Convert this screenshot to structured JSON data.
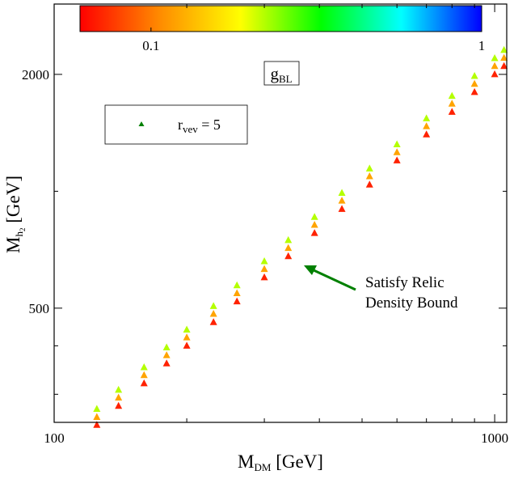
{
  "chart_data": {
    "type": "scatter",
    "xlabel": [
      "M",
      "DM",
      " [GeV]"
    ],
    "ylabel": [
      "M",
      "h",
      "2",
      " [GeV]"
    ],
    "xscale": "log",
    "yscale": "log",
    "xlim": [
      100,
      1065
    ],
    "ylim": [
      254,
      3035
    ],
    "xticks": [
      100,
      1000
    ],
    "xminorticks": [
      200,
      300,
      400,
      500,
      600,
      700,
      800,
      900
    ],
    "yticks": [
      500,
      2000
    ],
    "yminorticks": [
      300,
      400,
      1000
    ],
    "colorbar": {
      "title": [
        "g",
        "BL"
      ],
      "clim": [
        0.061,
        1
      ],
      "ticks": [
        0.1,
        1
      ],
      "colormap": [
        "#ff0000",
        "#ff8c00",
        "#ffff00",
        "#00ff00",
        "#00ffff",
        "#0000ff"
      ]
    },
    "series": [
      {
        "name": [
          "r",
          "vev",
          " = 5"
        ],
        "color": "#008000",
        "marker": "triangle",
        "x": [
          125,
          125,
          125,
          140,
          140,
          140,
          160,
          160,
          160,
          180,
          180,
          180,
          200,
          200,
          200,
          230,
          230,
          230,
          260,
          260,
          260,
          300,
          300,
          300,
          340,
          340,
          340,
          390,
          390,
          390,
          450,
          450,
          450,
          520,
          520,
          520,
          600,
          600,
          600,
          700,
          700,
          700,
          800,
          800,
          800,
          900,
          900,
          900,
          1000,
          1000,
          1000,
          1050,
          1050,
          1050
        ],
        "y": [
          250,
          262,
          275,
          280,
          294,
          308,
          320,
          336,
          352,
          360,
          378,
          396,
          400,
          420,
          440,
          460,
          483,
          506,
          520,
          546,
          572,
          600,
          630,
          660,
          680,
          714,
          748,
          780,
          819,
          858,
          900,
          945,
          990,
          1040,
          1092,
          1144,
          1200,
          1260,
          1320,
          1400,
          1470,
          1540,
          1600,
          1680,
          1760,
          1800,
          1890,
          1980,
          2000,
          2100,
          2200,
          2100,
          2205,
          2310
        ],
        "c": [
          0.07,
          0.12,
          0.22,
          0.07,
          0.12,
          0.22,
          0.07,
          0.12,
          0.22,
          0.07,
          0.12,
          0.22,
          0.07,
          0.12,
          0.22,
          0.07,
          0.12,
          0.22,
          0.07,
          0.12,
          0.22,
          0.07,
          0.12,
          0.22,
          0.07,
          0.12,
          0.22,
          0.07,
          0.12,
          0.22,
          0.07,
          0.12,
          0.22,
          0.07,
          0.12,
          0.22,
          0.07,
          0.12,
          0.22,
          0.07,
          0.12,
          0.22,
          0.07,
          0.12,
          0.22,
          0.07,
          0.12,
          0.22,
          0.07,
          0.12,
          0.22,
          0.07,
          0.12,
          0.22
        ]
      }
    ],
    "annotation": {
      "lines": [
        "Satisfy Relic",
        "Density Bound"
      ],
      "color": "#008000"
    }
  }
}
